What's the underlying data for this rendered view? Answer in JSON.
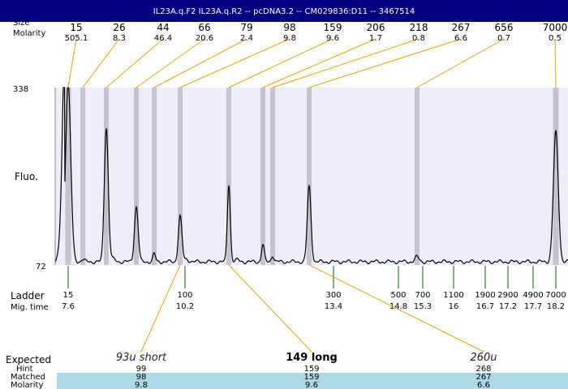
{
  "header": {
    "title": "IL23A.q.F2  IL23A.q.R2 -- pcDNA3.2 -- CM029836:D11 -- 3467514"
  },
  "labels": {
    "size_row": "Size",
    "molarity_row": "Molarity",
    "fluo": "Fluo.",
    "ladder": "Ladder",
    "mig_time": "Mig. time",
    "expected": "Expected",
    "hint": "Hint",
    "matched": "Matched",
    "molarity_bottom": "Molarity"
  },
  "colors": {
    "header_bg": "#000080",
    "plot_bg": "#eeeefb",
    "band": "#c4c4d0",
    "trace": "#000000",
    "orange": "#f0a000",
    "green": "#006400",
    "table_bg": "#add8e6"
  },
  "chart_data": {
    "type": "line",
    "ylim": [
      72,
      338
    ],
    "y_ticks": [
      "338",
      "72"
    ],
    "top_peaks": [
      {
        "size": "15",
        "molarity": "505.1"
      },
      {
        "size": "26",
        "molarity": "8.3"
      },
      {
        "size": "44",
        "molarity": "46.4"
      },
      {
        "size": "66",
        "molarity": "20.6"
      },
      {
        "size": "79",
        "molarity": "2.4"
      },
      {
        "size": "98",
        "molarity": "9.8"
      },
      {
        "size": "159",
        "molarity": "9.6"
      },
      {
        "size": "206",
        "molarity": "1.7"
      },
      {
        "size": "218",
        "molarity": "0.8"
      },
      {
        "size": "267",
        "molarity": "6.6"
      },
      {
        "size": "656",
        "molarity": "0.7"
      },
      {
        "size": "7000",
        "molarity": "0.5"
      }
    ],
    "ladder": [
      {
        "size": "15",
        "time": "7.6"
      },
      {
        "size": "100",
        "time": "10.2"
      },
      {
        "size": "300",
        "time": "13.4"
      },
      {
        "size": "500",
        "time": "14.8"
      },
      {
        "size": "700",
        "time": "15.3"
      },
      {
        "size": "1100",
        "time": "16"
      },
      {
        "size": "1900",
        "time": "16.7"
      },
      {
        "size": "2900",
        "time": "17.2"
      },
      {
        "size": "4900",
        "time": "17.7"
      },
      {
        "size": "7000",
        "time": "18.2"
      }
    ],
    "expected": [
      {
        "label": "93u short",
        "hint": "99",
        "matched": "98",
        "molarity": "9.8",
        "style": "italic"
      },
      {
        "label": "149 long",
        "hint": "159",
        "matched": "159",
        "molarity": "9.6",
        "style": "bold"
      },
      {
        "label": "260u",
        "hint": "268",
        "matched": "267",
        "molarity": "6.6",
        "style": "italic"
      }
    ]
  }
}
